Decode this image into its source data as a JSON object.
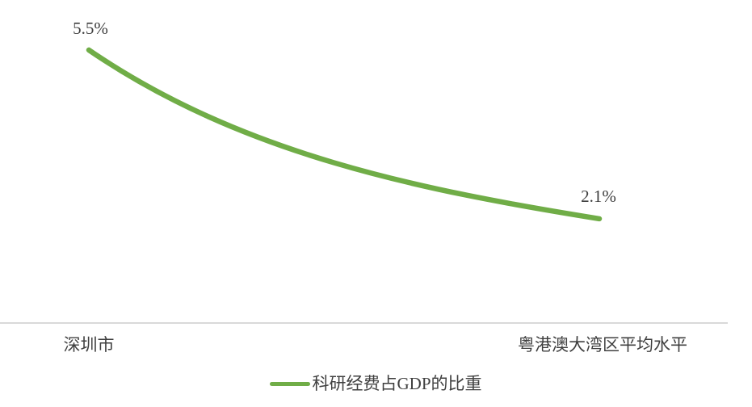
{
  "chart_data": {
    "type": "line",
    "title": "",
    "categories": [
      "深圳市",
      "粤港澳大湾区平均水平"
    ],
    "series": [
      {
        "name": "科研经费占GDP的比重",
        "values": [
          5.5,
          2.1
        ],
        "color": "#70AD47",
        "smoothed": true
      }
    ],
    "data_labels": [
      "5.5%",
      "2.1%"
    ],
    "xlabel": "",
    "ylabel": "",
    "y_axis_visible": false,
    "grid": false,
    "legend_position": "bottom",
    "axis_line_color": "#D9D9D9",
    "label_color": "#3F3F3F"
  }
}
